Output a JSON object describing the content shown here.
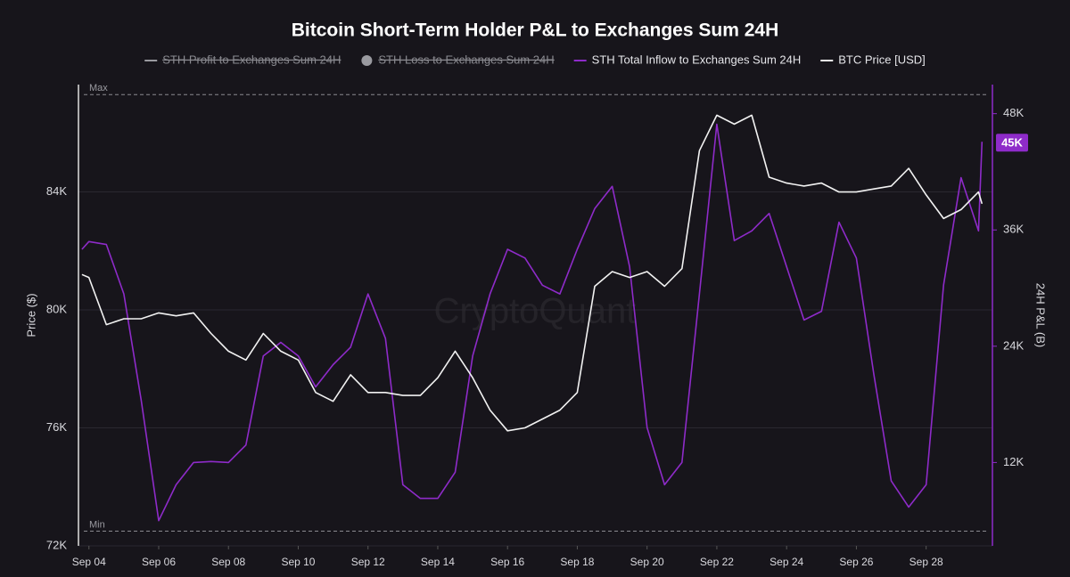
{
  "chart_data": {
    "type": "line",
    "title": "Bitcoin Short-Term Holder P&L to Exchanges Sum 24H",
    "watermark": "CryptoQuant",
    "ylabel": "Price ($)",
    "y2label": "24H P&L (B)",
    "x": [
      3.8,
      4.0,
      4.5,
      5.0,
      5.5,
      6.0,
      6.5,
      7.0,
      7.5,
      8.0,
      8.5,
      9.0,
      9.5,
      10.0,
      10.5,
      11.0,
      11.5,
      12.0,
      12.5,
      13.0,
      13.5,
      14.0,
      14.5,
      15.0,
      15.5,
      16.0,
      16.5,
      17.0,
      17.5,
      18.0,
      18.5,
      19.0,
      19.5,
      20.0,
      20.5,
      21.0,
      21.5,
      22.0,
      22.5,
      23.0,
      23.5,
      24.0,
      24.5,
      25.0,
      25.5,
      26.0,
      26.5,
      27.0,
      27.5,
      28.0,
      28.5,
      29.0,
      29.5,
      29.6
    ],
    "xlim": [
      3.7,
      29.9
    ],
    "xticks": [
      {
        "value": 4,
        "label": "Sep 04"
      },
      {
        "value": 6,
        "label": "Sep 06"
      },
      {
        "value": 8,
        "label": "Sep 08"
      },
      {
        "value": 10,
        "label": "Sep 10"
      },
      {
        "value": 12,
        "label": "Sep 12"
      },
      {
        "value": 14,
        "label": "Sep 14"
      },
      {
        "value": 16,
        "label": "Sep 16"
      },
      {
        "value": 18,
        "label": "Sep 18"
      },
      {
        "value": 20,
        "label": "Sep 20"
      },
      {
        "value": 22,
        "label": "Sep 22"
      },
      {
        "value": 24,
        "label": "Sep 24"
      },
      {
        "value": 26,
        "label": "Sep 26"
      },
      {
        "value": 28,
        "label": "Sep 28"
      }
    ],
    "ylim": [
      72000,
      87640
    ],
    "yticks": [
      {
        "value": 72000,
        "label": "72K"
      },
      {
        "value": 76000,
        "label": "76K"
      },
      {
        "value": 80000,
        "label": "80K"
      },
      {
        "value": 84000,
        "label": "84K"
      }
    ],
    "y2lim": [
      3400,
      51000
    ],
    "y2ticks": [
      {
        "value": 12000,
        "label": "12K"
      },
      {
        "value": 24000,
        "label": "24K"
      },
      {
        "value": 36000,
        "label": "36K"
      },
      {
        "value": 48000,
        "label": "48K"
      }
    ],
    "reference_lines": [
      {
        "label": "Max",
        "value": 87300
      },
      {
        "label": "Min",
        "value": 72500
      }
    ],
    "hidden_series": [
      {
        "name": "STH Profit to Exchanges Sum 24H",
        "color": "#9a9aa0",
        "marker": "line"
      },
      {
        "name": "STH Loss to Exchanges Sum 24H",
        "color": "#9a9aa0",
        "marker": "circle"
      }
    ],
    "series": [
      {
        "name": "STH Total Inflow to Exchanges Sum 24H",
        "color": "#8e2bc9",
        "axis": "y2",
        "values": [
          34000,
          34800,
          34500,
          29400,
          18400,
          6000,
          9700,
          12000,
          12100,
          12000,
          13800,
          23000,
          24400,
          23000,
          19800,
          22100,
          23900,
          29400,
          24800,
          9700,
          8300,
          8300,
          11000,
          23000,
          29400,
          34000,
          33100,
          30300,
          29400,
          34000,
          38200,
          40500,
          32200,
          15600,
          9700,
          12000,
          29400,
          46900,
          34900,
          35900,
          37700,
          32200,
          26700,
          27600,
          36800,
          33100,
          21100,
          10100,
          7400,
          9700,
          30300,
          41400,
          35900,
          45100
        ]
      },
      {
        "name": "BTC Price [USD]",
        "color": "#f2f2f2",
        "axis": "y",
        "values": [
          81200,
          81100,
          79500,
          79700,
          79700,
          79900,
          79800,
          79900,
          79200,
          78600,
          78300,
          79200,
          78600,
          78300,
          77200,
          76900,
          77800,
          77200,
          77200,
          77100,
          77100,
          77700,
          78600,
          77700,
          76600,
          75900,
          76000,
          76300,
          76600,
          77200,
          80800,
          81300,
          81100,
          81300,
          80800,
          81400,
          85400,
          86600,
          86300,
          86600,
          84500,
          84300,
          84200,
          84300,
          84000,
          84000,
          84100,
          84200,
          84800,
          83900,
          83100,
          83400,
          84000,
          83600
        ]
      }
    ],
    "current_marker": {
      "value": 45000,
      "label": "45K",
      "color": "#8e2bc9"
    }
  }
}
